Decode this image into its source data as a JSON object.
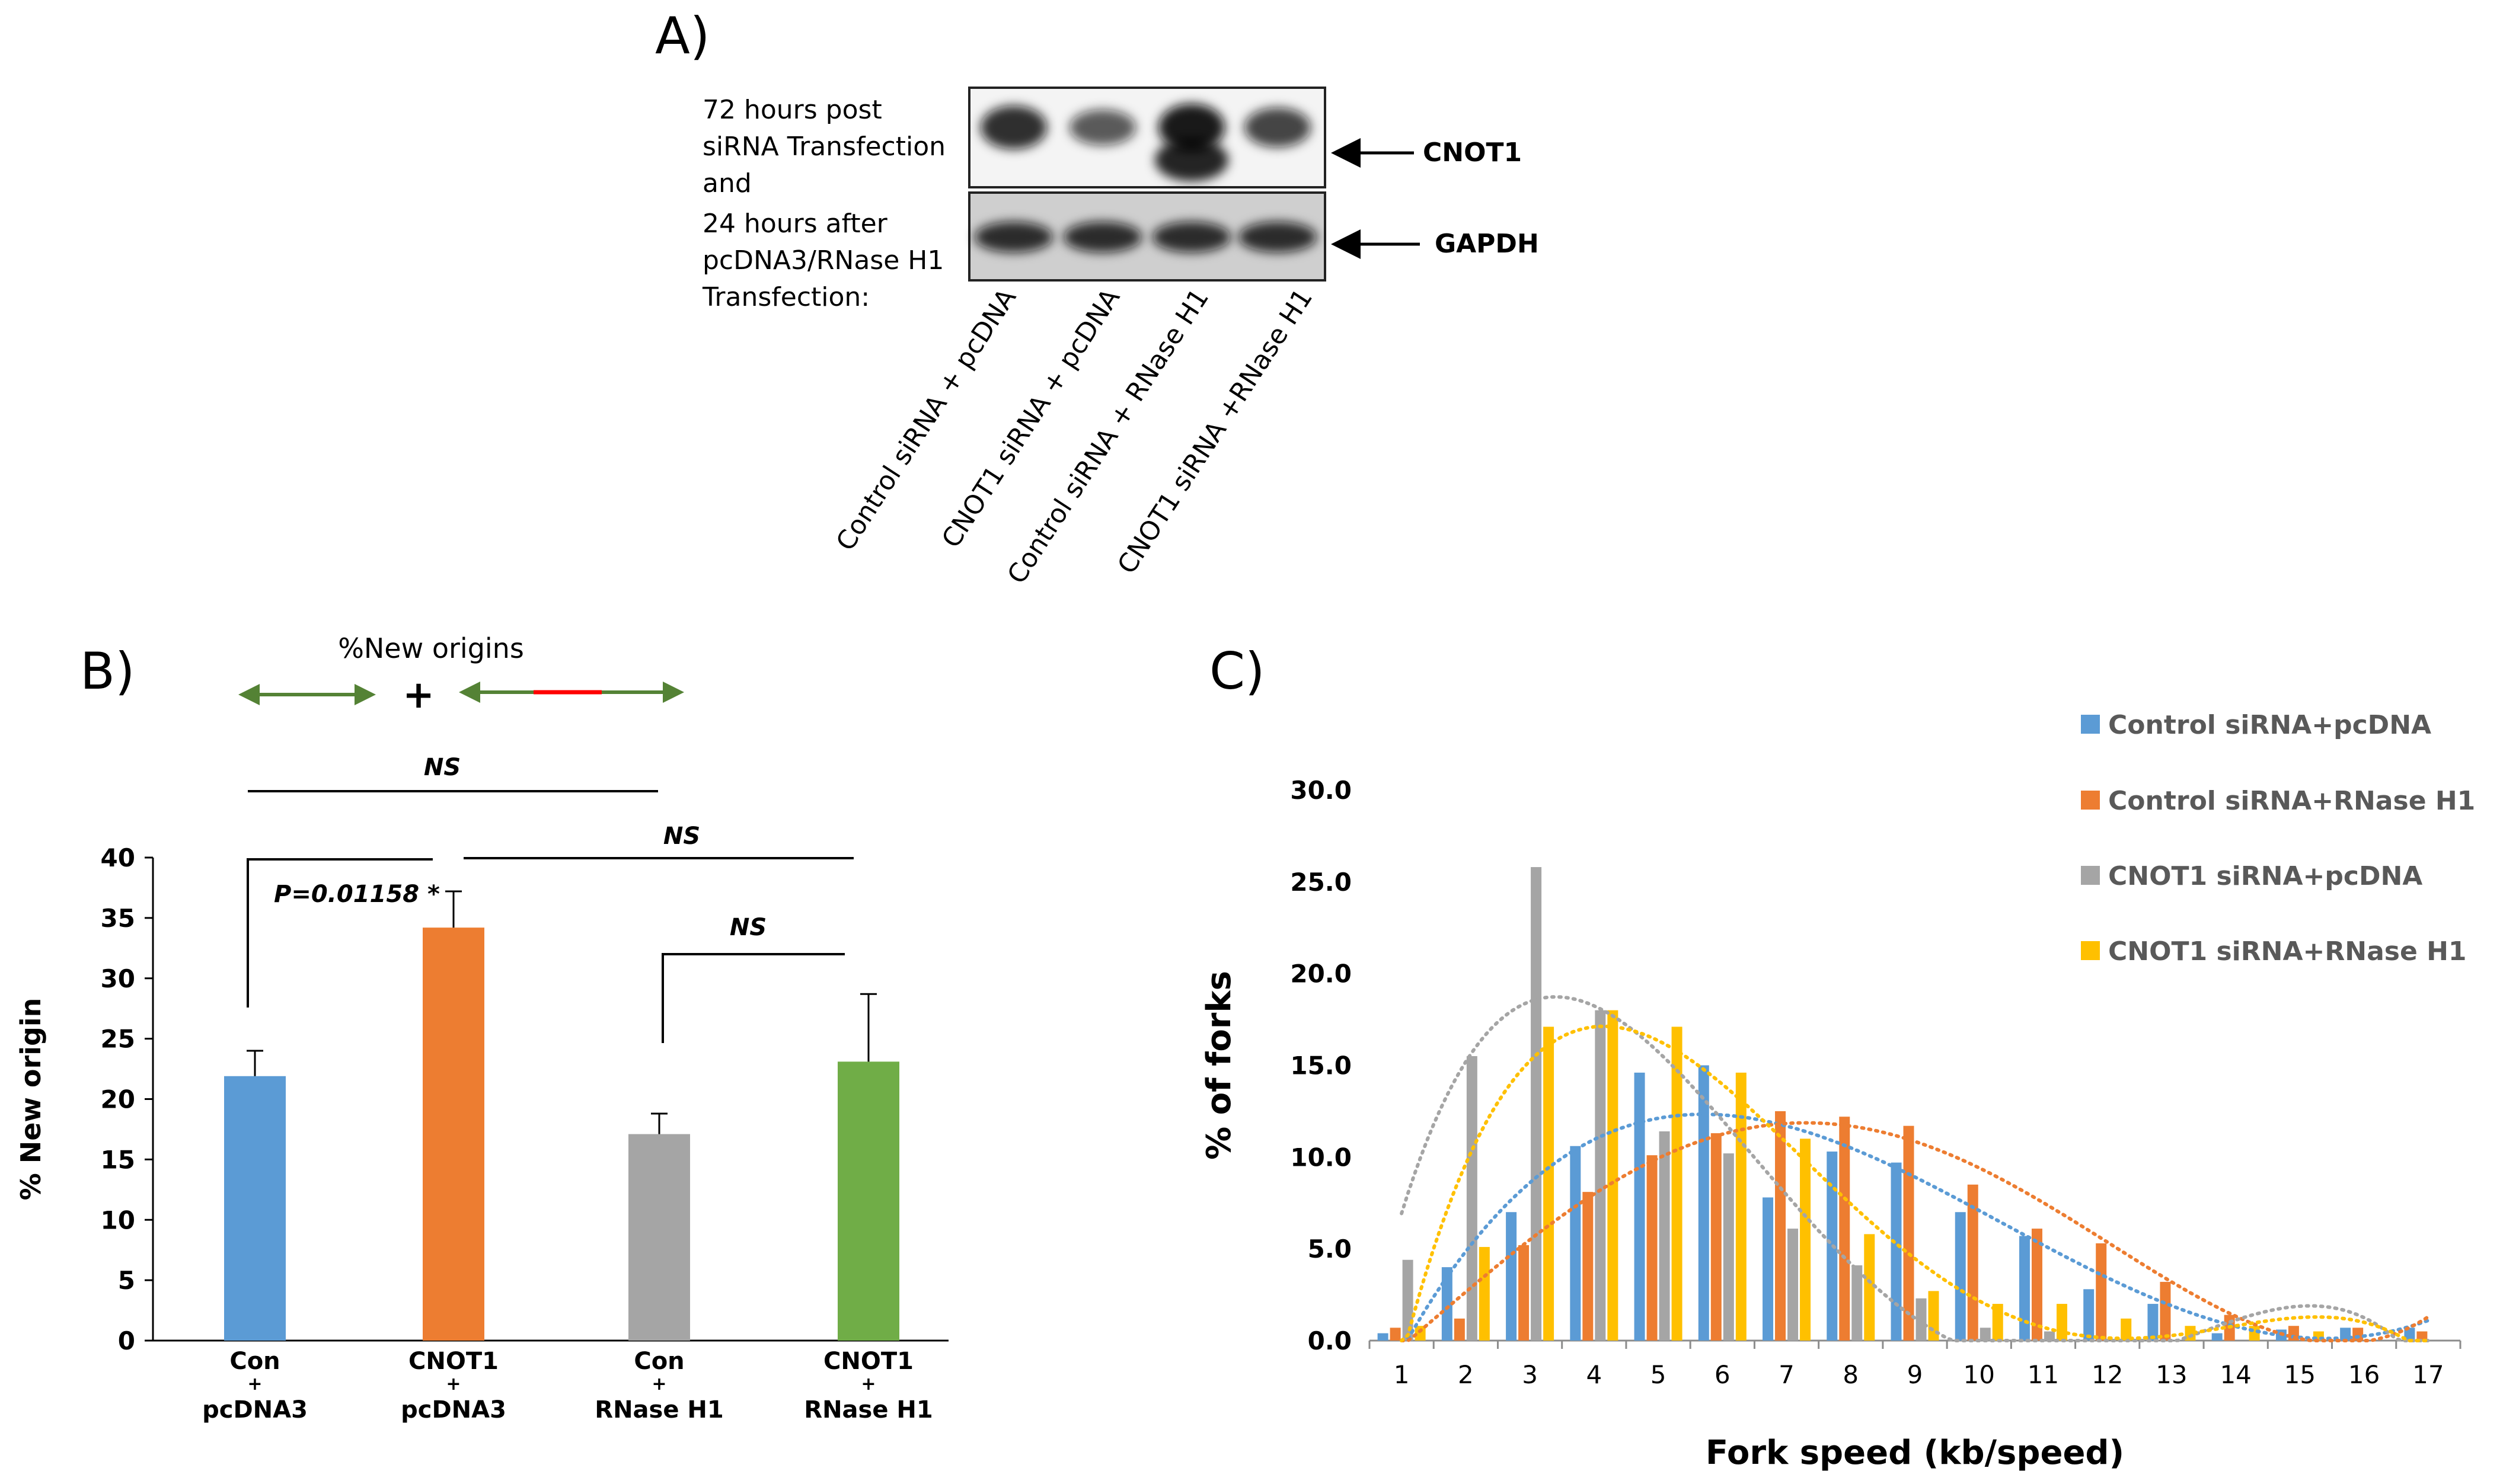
{
  "colors": {
    "blue": "#5b9bd5",
    "orange": "#ed7d31",
    "gray": "#a5a5a5",
    "yellow": "#ffc000",
    "green": "#70ad47",
    "arrow_green": "#548235",
    "arrow_red": "#ff0000"
  },
  "panel_a": {
    "label": "A)",
    "caption_lines": [
      "72 hours post",
      "siRNA Transfection",
      "and",
      "24 hours after",
      "pcDNA3/RNase H1",
      "Transfection:"
    ],
    "band_labels": [
      "CNOT1",
      "GAPDH"
    ],
    "lane_labels": [
      "Control siRNA + pcDNA",
      "CNOT1 siRNA + pcDNA",
      "Control siRNA + RNase H1",
      "CNOT1 siRNA +RNase H1"
    ],
    "cnot1_band_intensity": [
      0.85,
      0.55,
      1.0,
      0.7
    ],
    "gapdh_band_intensity": [
      1.0,
      1.0,
      1.0,
      1.0
    ]
  },
  "panel_b": {
    "label": "B)",
    "legend_title": "%New origins",
    "legend_plus": "+",
    "sig_labels": [
      "NS",
      "NS",
      "NS"
    ],
    "pvalue_label": "P=0.01158 *",
    "chart_data": {
      "type": "bar",
      "title": "",
      "xlabel": "",
      "ylabel": "% New origin",
      "ylim": [
        0,
        40
      ],
      "yticks": [
        0,
        5,
        10,
        15,
        20,
        25,
        30,
        35,
        40
      ],
      "categories": [
        [
          "Con",
          "+",
          "pcDNA3"
        ],
        [
          "CNOT1",
          "+",
          "pcDNA3"
        ],
        [
          "Con",
          "+",
          "RNase H1"
        ],
        [
          "CNOT1",
          "+",
          "RNase H1"
        ]
      ],
      "values": [
        21.9,
        34.2,
        17.1,
        23.1
      ],
      "errors": [
        2.1,
        3.0,
        1.7,
        5.6
      ],
      "bar_colors": [
        "#5b9bd5",
        "#ed7d31",
        "#a5a5a5",
        "#70ad47"
      ]
    }
  },
  "panel_c": {
    "label": "C)",
    "chart_data": {
      "type": "bar",
      "title": "",
      "xlabel": "Fork speed (kb/speed)",
      "ylabel": "% of forks",
      "ylim": [
        0,
        30
      ],
      "yticks": [
        "0.0",
        "5.0",
        "10.0",
        "15.0",
        "20.0",
        "25.0",
        "30.0"
      ],
      "categories": [
        "1",
        "2",
        "3",
        "4",
        "5",
        "6",
        "7",
        "8",
        "9",
        "10",
        "11",
        "12",
        "13",
        "14",
        "15",
        "16",
        "17"
      ],
      "legend_position": "top-right",
      "trendlines": "dotted polynomial per series",
      "series": [
        {
          "name": "Control siRNA+pcDNA",
          "color": "#5b9bd5",
          "values": [
            0.4,
            4.0,
            7.0,
            10.6,
            14.6,
            15.0,
            7.8,
            10.3,
            9.7,
            7.0,
            5.7,
            2.8,
            2.0,
            0.4,
            0.6,
            0.7,
            0.7
          ]
        },
        {
          "name": "Control siRNA+RNase H1",
          "color": "#ed7d31",
          "values": [
            0.7,
            1.2,
            5.2,
            8.1,
            10.1,
            11.3,
            12.5,
            12.2,
            11.7,
            8.5,
            6.1,
            5.3,
            3.2,
            1.4,
            0.8,
            0.7,
            0.5
          ]
        },
        {
          "name": "CNOT1 siRNA+pcDNA",
          "color": "#a5a5a5",
          "values": [
            4.4,
            15.5,
            25.8,
            18.0,
            11.4,
            10.2,
            6.1,
            4.1,
            2.3,
            0.7,
            0.5,
            0.0,
            0.0,
            0.0,
            0.0,
            0.0,
            0.0
          ]
        },
        {
          "name": "CNOT1  siRNA+RNase H1",
          "color": "#ffc000",
          "values": [
            0.8,
            5.1,
            17.1,
            18.0,
            17.1,
            14.6,
            11.0,
            5.8,
            2.7,
            2.0,
            2.0,
            1.2,
            0.8,
            0.8,
            0.5,
            0.0,
            0.0
          ]
        }
      ]
    }
  }
}
